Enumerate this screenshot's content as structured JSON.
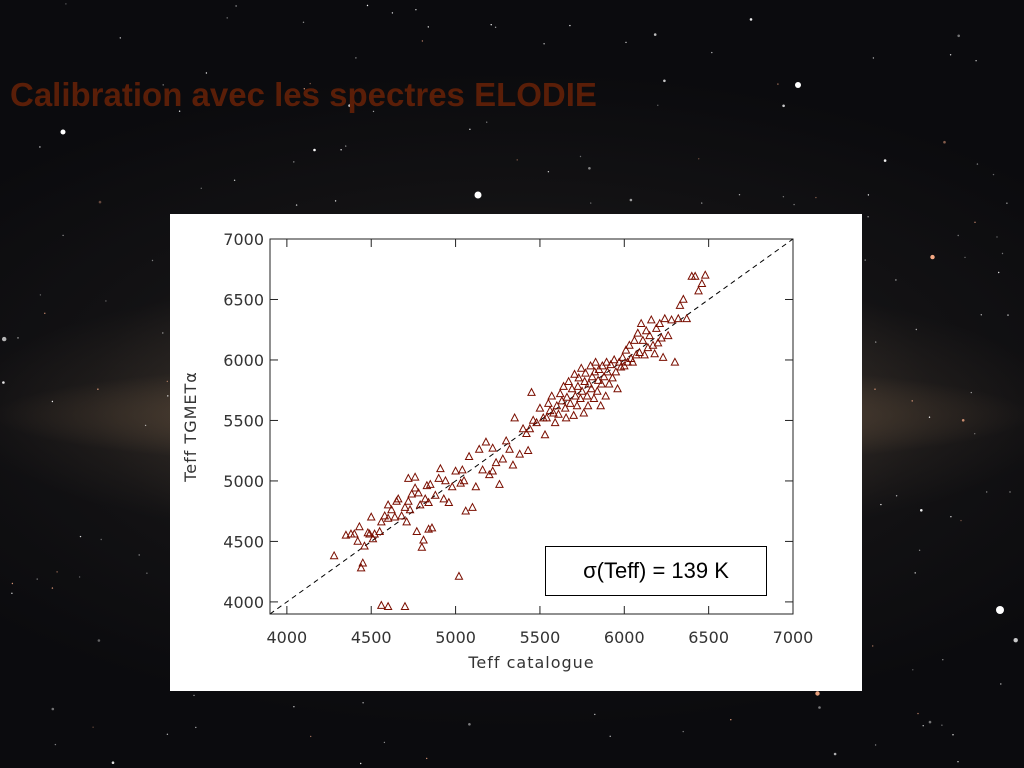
{
  "slide": {
    "title": "Calibration avec les spectres ELODIE"
  },
  "colors": {
    "title": "#5a1e08",
    "marker": "#7a0e00",
    "panel": "#ffffff"
  },
  "annotation": {
    "sigma_label": "σ(Teff) = 139 K"
  },
  "chart_data": {
    "type": "scatter",
    "xlabel": "Teff catalogue",
    "ylabel": "Teff TGMETα",
    "xlim": [
      3900,
      7000
    ],
    "ylim": [
      3900,
      7000
    ],
    "xticks": [
      4000,
      4500,
      5000,
      5500,
      6000,
      6500,
      7000
    ],
    "yticks": [
      4000,
      4500,
      5000,
      5500,
      6000,
      6500,
      7000
    ],
    "marker": "triangle-open",
    "reference_line": "y = x (dashed)",
    "series": [
      {
        "points": [
          [
            4280,
            4380
          ],
          [
            4350,
            4550
          ],
          [
            4380,
            4560
          ],
          [
            4400,
            4560
          ],
          [
            4420,
            4500
          ],
          [
            4430,
            4620
          ],
          [
            4440,
            4280
          ],
          [
            4450,
            4320
          ],
          [
            4460,
            4460
          ],
          [
            4480,
            4570
          ],
          [
            4490,
            4560
          ],
          [
            4500,
            4700
          ],
          [
            4510,
            4520
          ],
          [
            4520,
            4560
          ],
          [
            4550,
            4580
          ],
          [
            4560,
            4660
          ],
          [
            4580,
            4710
          ],
          [
            4600,
            4800
          ],
          [
            4600,
            4690
          ],
          [
            4620,
            4760
          ],
          [
            4640,
            4700
          ],
          [
            4650,
            4830
          ],
          [
            4660,
            4850
          ],
          [
            4680,
            4710
          ],
          [
            4700,
            4780
          ],
          [
            4710,
            4660
          ],
          [
            4720,
            4830
          ],
          [
            4720,
            5020
          ],
          [
            4730,
            4760
          ],
          [
            4740,
            4890
          ],
          [
            4760,
            4940
          ],
          [
            4760,
            5030
          ],
          [
            4770,
            4580
          ],
          [
            4790,
            4800
          ],
          [
            4800,
            4450
          ],
          [
            4810,
            4510
          ],
          [
            4820,
            4850
          ],
          [
            4830,
            4960
          ],
          [
            4840,
            4600
          ],
          [
            4850,
            4970
          ],
          [
            4860,
            4610
          ],
          [
            4880,
            4880
          ],
          [
            4900,
            5020
          ],
          [
            4910,
            5100
          ],
          [
            4930,
            4850
          ],
          [
            4940,
            5000
          ],
          [
            4960,
            4820
          ],
          [
            4980,
            4950
          ],
          [
            5000,
            5080
          ],
          [
            5020,
            4210
          ],
          [
            5030,
            4980
          ],
          [
            5040,
            5090
          ],
          [
            5050,
            5000
          ],
          [
            5060,
            4750
          ],
          [
            5080,
            5200
          ],
          [
            5100,
            4780
          ],
          [
            5120,
            4950
          ],
          [
            5140,
            5260
          ],
          [
            5160,
            5090
          ],
          [
            5180,
            5320
          ],
          [
            5200,
            5050
          ],
          [
            5220,
            5270
          ],
          [
            5240,
            5150
          ],
          [
            5260,
            4970
          ],
          [
            5280,
            5180
          ],
          [
            5300,
            5330
          ],
          [
            5320,
            5260
          ],
          [
            5340,
            5130
          ],
          [
            5350,
            5520
          ],
          [
            5380,
            5220
          ],
          [
            5400,
            5430
          ],
          [
            5420,
            5390
          ],
          [
            5430,
            5250
          ],
          [
            5440,
            5430
          ],
          [
            5450,
            5730
          ],
          [
            5460,
            5500
          ],
          [
            5480,
            5480
          ],
          [
            5500,
            5600
          ],
          [
            5520,
            5520
          ],
          [
            5530,
            5380
          ],
          [
            5540,
            5520
          ],
          [
            5550,
            5640
          ],
          [
            5560,
            5580
          ],
          [
            5570,
            5700
          ],
          [
            5580,
            5560
          ],
          [
            5590,
            5480
          ],
          [
            5600,
            5620
          ],
          [
            5610,
            5550
          ],
          [
            5620,
            5720
          ],
          [
            5630,
            5660
          ],
          [
            5640,
            5780
          ],
          [
            5650,
            5600
          ],
          [
            5655,
            5520
          ],
          [
            5660,
            5690
          ],
          [
            5670,
            5820
          ],
          [
            5680,
            5640
          ],
          [
            5690,
            5760
          ],
          [
            5700,
            5540
          ],
          [
            5705,
            5880
          ],
          [
            5710,
            5700
          ],
          [
            5720,
            5620
          ],
          [
            5725,
            5780
          ],
          [
            5730,
            5850
          ],
          [
            5740,
            5680
          ],
          [
            5745,
            5930
          ],
          [
            5750,
            5740
          ],
          [
            5760,
            5560
          ],
          [
            5765,
            5820
          ],
          [
            5770,
            5890
          ],
          [
            5780,
            5700
          ],
          [
            5785,
            5620
          ],
          [
            5790,
            5800
          ],
          [
            5800,
            5950
          ],
          [
            5805,
            5760
          ],
          [
            5810,
            5860
          ],
          [
            5820,
            5680
          ],
          [
            5825,
            5900
          ],
          [
            5830,
            5980
          ],
          [
            5840,
            5740
          ],
          [
            5845,
            5830
          ],
          [
            5850,
            5920
          ],
          [
            5860,
            5620
          ],
          [
            5865,
            5800
          ],
          [
            5870,
            5950
          ],
          [
            5880,
            5860
          ],
          [
            5890,
            5700
          ],
          [
            5895,
            5980
          ],
          [
            5900,
            5900
          ],
          [
            5910,
            5800
          ],
          [
            5920,
            5960
          ],
          [
            5930,
            5850
          ],
          [
            5940,
            6000
          ],
          [
            5950,
            5900
          ],
          [
            5960,
            5760
          ],
          [
            5970,
            5980
          ],
          [
            5980,
            5940
          ],
          [
            5990,
            6020
          ],
          [
            6000,
            5950
          ],
          [
            6010,
            6080
          ],
          [
            6020,
            5980
          ],
          [
            6030,
            6120
          ],
          [
            6040,
            6010
          ],
          [
            6050,
            5980
          ],
          [
            6060,
            6160
          ],
          [
            6070,
            6040
          ],
          [
            6080,
            6220
          ],
          [
            6090,
            6060
          ],
          [
            6100,
            6300
          ],
          [
            6110,
            6160
          ],
          [
            6120,
            6040
          ],
          [
            6130,
            6240
          ],
          [
            6140,
            6100
          ],
          [
            6150,
            6200
          ],
          [
            6160,
            6330
          ],
          [
            6170,
            6120
          ],
          [
            6180,
            6050
          ],
          [
            6190,
            6260
          ],
          [
            6200,
            6140
          ],
          [
            6210,
            6300
          ],
          [
            6220,
            6180
          ],
          [
            6230,
            6020
          ],
          [
            6240,
            6340
          ],
          [
            6260,
            6200
          ],
          [
            6280,
            6330
          ],
          [
            6300,
            5980
          ],
          [
            6320,
            6340
          ],
          [
            6330,
            6450
          ],
          [
            6350,
            6500
          ],
          [
            6370,
            6340
          ],
          [
            6400,
            6690
          ],
          [
            6420,
            6690
          ],
          [
            6440,
            6570
          ],
          [
            6460,
            6630
          ],
          [
            6480,
            6700
          ],
          [
            4560,
            3970
          ],
          [
            4600,
            3960
          ],
          [
            4700,
            3960
          ],
          [
            4780,
            4900
          ],
          [
            4840,
            4820
          ],
          [
            5220,
            5080
          ]
        ]
      }
    ]
  }
}
